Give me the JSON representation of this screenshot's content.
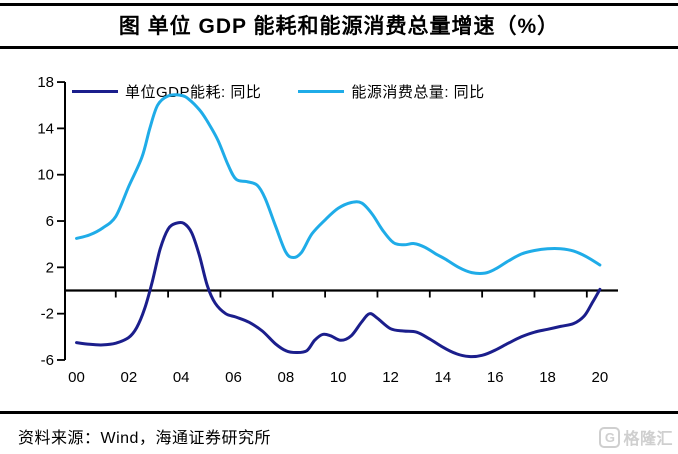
{
  "title": "图  单位 GDP 能耗和能源消费总量增速（%）",
  "source": "资料来源：Wind，海通证券研究所",
  "watermark": {
    "icon_letter": "G",
    "text": "格隆汇"
  },
  "colors": {
    "unit_gdp_line": "#1B1E8C",
    "energy_total_line": "#1FACE8",
    "axis": "#000000",
    "watermark_gray": "#cfcfcf"
  },
  "chart_data": {
    "type": "line",
    "title": "单位GDP能耗和能源消费总量增速（%）",
    "xlabel": "",
    "ylabel": "",
    "grid": false,
    "legend_position": "top",
    "x_axis": {
      "tick_labels": [
        "00",
        "02",
        "04",
        "06",
        "08",
        "10",
        "12",
        "14",
        "16",
        "18",
        "20"
      ],
      "tick_years": [
        2000,
        2002,
        2004,
        2006,
        2008,
        2010,
        2012,
        2014,
        2016,
        2018,
        2020
      ],
      "boundary_tick_years": [
        2001.5,
        2003.5,
        2005.5,
        2007.5,
        2009.5,
        2011.5,
        2013.5,
        2015.5,
        2017.5,
        2019.5
      ],
      "range": [
        2000,
        2020.7
      ]
    },
    "y_axis": {
      "ticks": [
        18,
        14,
        10,
        6,
        2,
        -2,
        -6
      ],
      "range": [
        -6,
        18
      ],
      "zero_baseline": true
    },
    "series": [
      {
        "name": "单位GDP能耗: 同比",
        "color": "#1B1E8C",
        "points": [
          [
            2000,
            -4.5
          ],
          [
            2000.5,
            -4.65
          ],
          [
            2001,
            -4.7
          ],
          [
            2001.5,
            -4.55
          ],
          [
            2002,
            -4.05
          ],
          [
            2002.3,
            -3.2
          ],
          [
            2002.6,
            -1.6
          ],
          [
            2002.9,
            0.8
          ],
          [
            2003.2,
            3.6
          ],
          [
            2003.5,
            5.3
          ],
          [
            2003.8,
            5.8
          ],
          [
            2004.1,
            5.8
          ],
          [
            2004.4,
            5.0
          ],
          [
            2004.7,
            3.0
          ],
          [
            2005.0,
            0.4
          ],
          [
            2005.3,
            -1.1
          ],
          [
            2005.7,
            -2.0
          ],
          [
            2006.1,
            -2.3
          ],
          [
            2006.6,
            -2.75
          ],
          [
            2007.1,
            -3.5
          ],
          [
            2007.6,
            -4.6
          ],
          [
            2008,
            -5.2
          ],
          [
            2008.4,
            -5.35
          ],
          [
            2008.8,
            -5.2
          ],
          [
            2009.1,
            -4.3
          ],
          [
            2009.4,
            -3.8
          ],
          [
            2009.7,
            -3.9
          ],
          [
            2010.1,
            -4.3
          ],
          [
            2010.5,
            -3.9
          ],
          [
            2010.9,
            -2.7
          ],
          [
            2011.2,
            -2.0
          ],
          [
            2011.5,
            -2.4
          ],
          [
            2012,
            -3.3
          ],
          [
            2012.5,
            -3.5
          ],
          [
            2013,
            -3.6
          ],
          [
            2013.5,
            -4.2
          ],
          [
            2014,
            -4.9
          ],
          [
            2014.5,
            -5.45
          ],
          [
            2015,
            -5.7
          ],
          [
            2015.5,
            -5.6
          ],
          [
            2016,
            -5.15
          ],
          [
            2016.5,
            -4.55
          ],
          [
            2017,
            -4.0
          ],
          [
            2017.5,
            -3.6
          ],
          [
            2018,
            -3.35
          ],
          [
            2018.5,
            -3.1
          ],
          [
            2019,
            -2.85
          ],
          [
            2019.4,
            -2.2
          ],
          [
            2019.7,
            -1.1
          ],
          [
            2020,
            0.1
          ]
        ]
      },
      {
        "name": "能源消费总量: 同比",
        "color": "#1FACE8",
        "points": [
          [
            2000,
            4.5
          ],
          [
            2000.5,
            4.8
          ],
          [
            2001,
            5.4
          ],
          [
            2001.5,
            6.4
          ],
          [
            2002,
            9.0
          ],
          [
            2002.5,
            11.5
          ],
          [
            2002.8,
            14.0
          ],
          [
            2003.1,
            16.0
          ],
          [
            2003.5,
            16.8
          ],
          [
            2004,
            16.85
          ],
          [
            2004.3,
            16.5
          ],
          [
            2004.7,
            15.6
          ],
          [
            2005,
            14.6
          ],
          [
            2005.4,
            13.0
          ],
          [
            2005.8,
            10.8
          ],
          [
            2006.1,
            9.6
          ],
          [
            2006.5,
            9.4
          ],
          [
            2006.9,
            9.1
          ],
          [
            2007.2,
            8.0
          ],
          [
            2007.6,
            5.6
          ],
          [
            2008,
            3.3
          ],
          [
            2008.3,
            2.85
          ],
          [
            2008.6,
            3.3
          ],
          [
            2009,
            4.9
          ],
          [
            2009.5,
            6.1
          ],
          [
            2010,
            7.1
          ],
          [
            2010.5,
            7.6
          ],
          [
            2010.9,
            7.55
          ],
          [
            2011.3,
            6.6
          ],
          [
            2011.7,
            5.2
          ],
          [
            2012.1,
            4.15
          ],
          [
            2012.5,
            3.95
          ],
          [
            2012.9,
            4.05
          ],
          [
            2013.3,
            3.75
          ],
          [
            2013.7,
            3.2
          ],
          [
            2014.1,
            2.7
          ],
          [
            2014.6,
            2.0
          ],
          [
            2015.1,
            1.55
          ],
          [
            2015.6,
            1.5
          ],
          [
            2016,
            1.85
          ],
          [
            2016.5,
            2.55
          ],
          [
            2017,
            3.15
          ],
          [
            2017.5,
            3.45
          ],
          [
            2018,
            3.6
          ],
          [
            2018.5,
            3.6
          ],
          [
            2019,
            3.4
          ],
          [
            2019.5,
            2.9
          ],
          [
            2020,
            2.2
          ]
        ]
      }
    ]
  }
}
